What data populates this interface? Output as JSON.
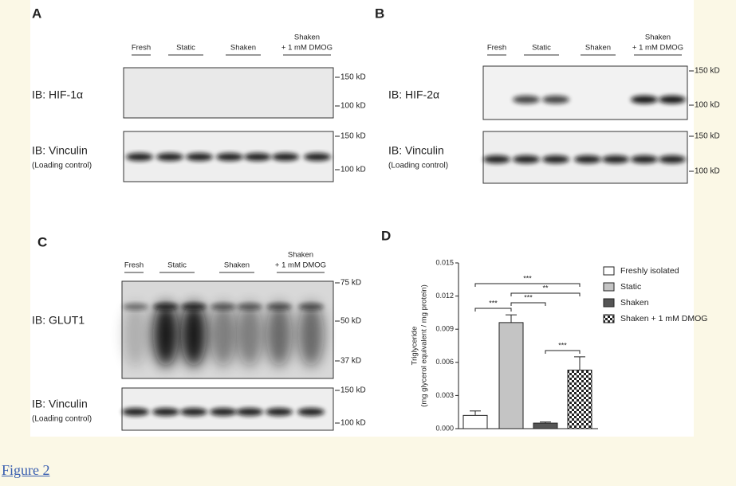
{
  "panels": [
    {
      "label": "A",
      "lanes": [
        [
          "Fresh"
        ],
        [
          "Static"
        ],
        [
          "Shaken"
        ],
        [
          "Shaken",
          "+ 1 mM DMOG"
        ]
      ],
      "blots": [
        {
          "label": "IB: HIF-1α",
          "markers": [
            "150 kD",
            "100 kD"
          ]
        },
        {
          "label": "IB: Vinculin",
          "note": "(Loading control)",
          "markers": [
            "150 kD",
            "100 kD"
          ]
        }
      ]
    },
    {
      "label": "B",
      "lanes": [
        [
          "Fresh"
        ],
        [
          "Static"
        ],
        [
          "Shaken"
        ],
        [
          "Shaken",
          "+ 1 mM DMOG"
        ]
      ],
      "blots": [
        {
          "label": "IB: HIF-2α",
          "markers": [
            "150 kD",
            "100 kD"
          ]
        },
        {
          "label": "IB: Vinculin",
          "note": "(Loading control)",
          "markers": [
            "150 kD",
            "100 kD"
          ]
        }
      ]
    },
    {
      "label": "C",
      "lanes": [
        [
          "Fresh"
        ],
        [
          "Static"
        ],
        [
          "Shaken"
        ],
        [
          "Shaken",
          "+ 1 mM DMOG"
        ]
      ],
      "blots": [
        {
          "label": "IB: GLUT1",
          "markers": [
            "75 kD",
            "50 kD",
            "37 kD"
          ]
        },
        {
          "label": "IB: Vinculin",
          "note": "(Loading control)",
          "markers": [
            "150 kD",
            "100 kD"
          ]
        }
      ]
    }
  ],
  "chart_data": {
    "type": "bar",
    "title": "D",
    "y_label": [
      "Triglyceride",
      "(mg glycerol equivalent / mg protein)"
    ],
    "categories": [
      null
    ],
    "series": [
      {
        "name": "Freshly isolated",
        "color": "#ffffff",
        "values": [
          0.0012
        ],
        "errors": [
          0.0004
        ]
      },
      {
        "name": "Static",
        "color": "#c4c4c4",
        "values": [
          0.0096
        ],
        "errors": [
          0.0007
        ]
      },
      {
        "name": "Shaken",
        "color": "#555555",
        "values": [
          0.0005
        ],
        "errors": [
          0.0001
        ]
      },
      {
        "name": "Shaken + 1 mM DMOG",
        "color": "#222222",
        "pattern": "checker",
        "values": [
          0.0053
        ],
        "errors": [
          0.0012
        ]
      }
    ],
    "ylim": [
      0,
      0.015
    ],
    "yticks": [
      {
        "value": 0,
        "label": "0.000"
      },
      {
        "value": 0.003,
        "label": "0.003"
      },
      {
        "value": 0.006,
        "label": "0.006"
      },
      {
        "value": 0.009,
        "label": "0.009"
      },
      {
        "value": 0.012,
        "label": "0.012"
      },
      {
        "value": 0.015,
        "label": "0.015"
      }
    ],
    "annotations": [
      "***",
      "***",
      "**",
      "***",
      "***"
    ]
  },
  "caption": "Figure 2"
}
